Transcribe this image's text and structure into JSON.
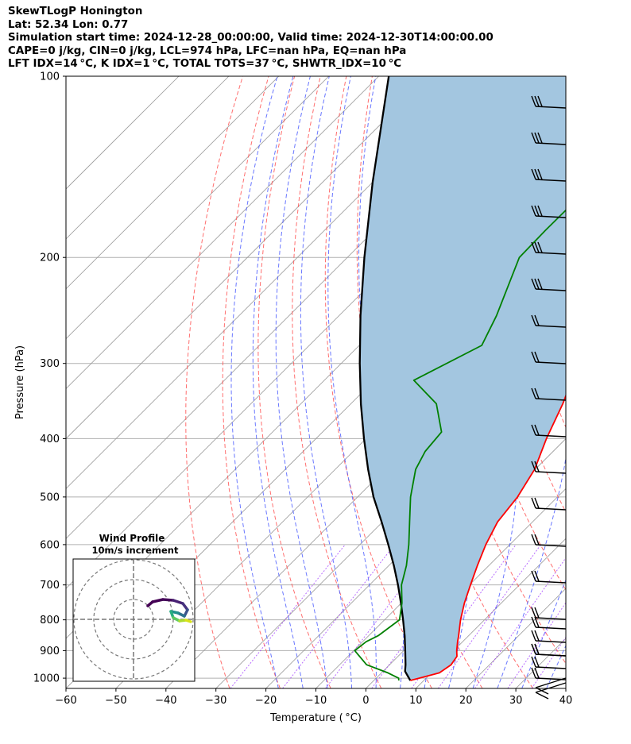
{
  "header": {
    "line1": "SkewTLogP Honington",
    "line2": "Lat: 52.34   Lon: 0.77",
    "line3": "Simulation start time: 2024-12-28_00:00:00, Valid time: 2024-12-30T14:00:00.00",
    "line4": "CAPE=0 j/kg, CIN=0 j/kg, LCL=974 hPa, LFC=nan hPa, EQ=nan hPa",
    "line5": "LFT IDX=14 °C, K IDX=1 °C, TOTAL TOTS=37 °C, SHWTR_IDX=10 °C"
  },
  "chart_data": {
    "type": "line",
    "xlabel": "Temperature ( °C)",
    "ylabel": "Pressure (hPa)",
    "xlim": [
      -60,
      40
    ],
    "ylim": [
      1040,
      100
    ],
    "x_ticks": [
      "−60",
      "−50",
      "−40",
      "−30",
      "−20",
      "−10",
      "0",
      "10",
      "20",
      "30",
      "40"
    ],
    "y_ticks": [
      "100",
      "200",
      "300",
      "400",
      "500",
      "600",
      "700",
      "800",
      "900",
      "1000"
    ],
    "colors": {
      "temperature": "#ff0000",
      "dewpoint": "#008000",
      "parcel": "#000000",
      "shade": "#a3c6e0",
      "dry_adiabat": "#ff5555",
      "moist_adiabat": "#4455ff",
      "mixing_ratio": "#9b30ff",
      "isotherm": "#999999",
      "wind": "#000000"
    },
    "series": [
      {
        "key": "temperature",
        "pressure": [
          1009,
          1000,
          980,
          950,
          920,
          900,
          870,
          850,
          800,
          750,
          700,
          650,
          600,
          550,
          500,
          450,
          400,
          350,
          300,
          250,
          210,
          200,
          170,
          150,
          130,
          110,
          100
        ],
        "temperature_c": [
          7.3,
          8.6,
          11.6,
          12.3,
          11.8,
          10.6,
          9.0,
          8.0,
          5.2,
          2.6,
          0.2,
          -2.3,
          -4.8,
          -7.0,
          -8.0,
          -10.1,
          -13.9,
          -17.6,
          -22.6,
          -29.1,
          -34.4,
          -33.7,
          -28.8,
          -29.7,
          -31.1,
          -34.0,
          -36.3
        ]
      },
      {
        "key": "dewpoint",
        "pressure": [
          1009,
          1000,
          980,
          950,
          900,
          870,
          850,
          800,
          750,
          700,
          650,
          600,
          550,
          500,
          450,
          420,
          390,
          350,
          320,
          280,
          250,
          200,
          180,
          160,
          150,
          140,
          120,
          100
        ],
        "temperature_c": [
          5.0,
          4.5,
          1.3,
          -4.6,
          -9.8,
          -9.3,
          -8.1,
          -7.0,
          -9.9,
          -13.6,
          -16.5,
          -20.2,
          -24.6,
          -29.4,
          -33.9,
          -35.6,
          -36.2,
          -42.9,
          -52.1,
          -45.5,
          -48.5,
          -55.6,
          -55.8,
          -55.7,
          -52.0,
          -46.9,
          -48.0,
          -46.0
        ]
      },
      {
        "key": "parcel",
        "pressure": [
          1009,
          974,
          950,
          900,
          850,
          800,
          750,
          700,
          650,
          600,
          550,
          500,
          450,
          400,
          350,
          300,
          250,
          200,
          150,
          100
        ],
        "temperature_c": [
          7.3,
          4.4,
          3.2,
          0.3,
          -2.8,
          -6.3,
          -10.1,
          -14.3,
          -19.0,
          -24.3,
          -30.2,
          -36.8,
          -43.4,
          -50.4,
          -58.0,
          -66.3,
          -75.7,
          -86.6,
          -100.0,
          -118.0
        ]
      }
    ],
    "wind_profile": {
      "title": "Wind Profile",
      "subtitle": "10m/s increment"
    }
  }
}
